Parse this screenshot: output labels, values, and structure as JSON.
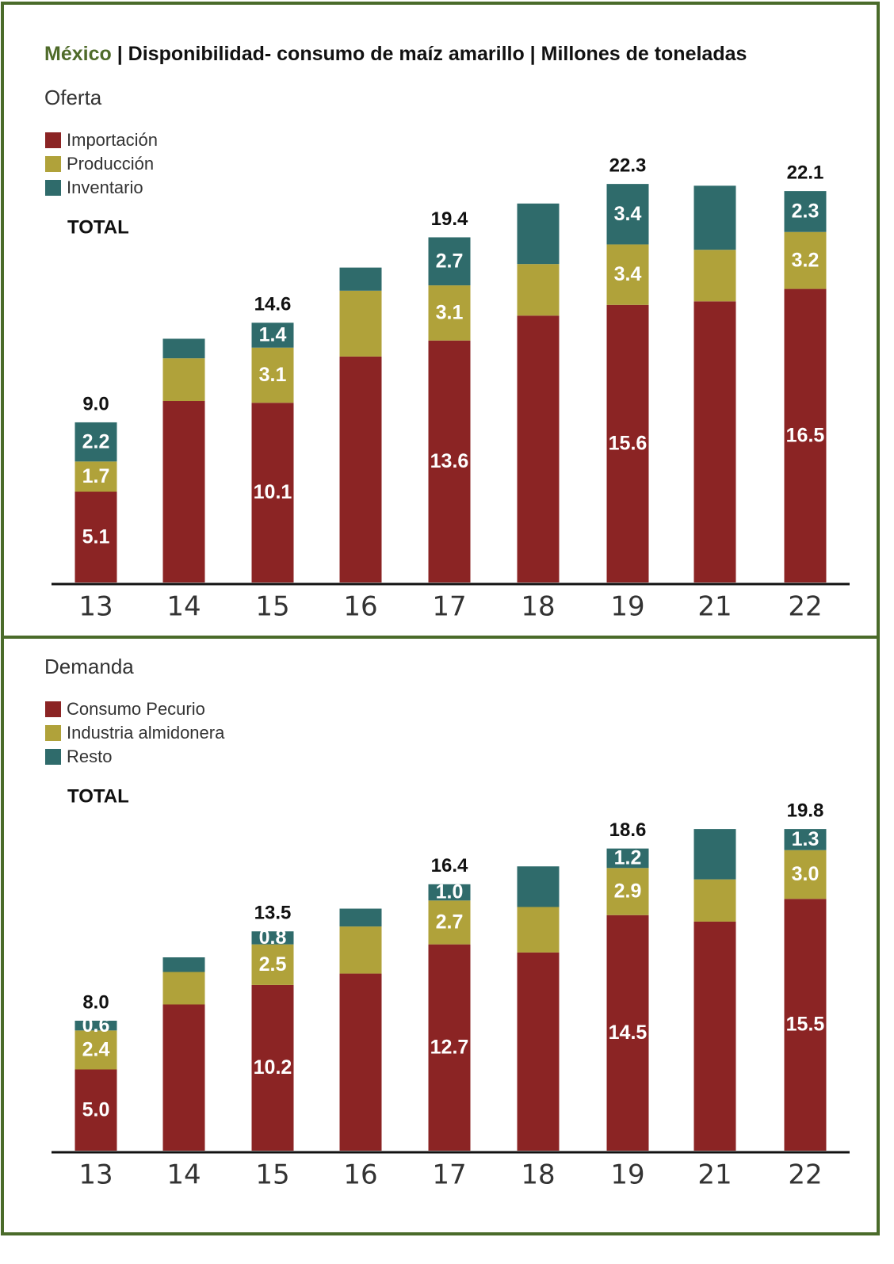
{
  "title": {
    "country": "México",
    "text": "| Disponibilidad- consumo de maíz amarillo | Millones de toneladas"
  },
  "chart_data": [
    {
      "type": "bar",
      "stacked": true,
      "subtitle": "Oferta",
      "total_title": "TOTAL",
      "categories": [
        "13",
        "14",
        "15",
        "16",
        "17",
        "18",
        "19",
        "21",
        "22"
      ],
      "series": [
        {
          "name": "Importación",
          "color": "#8b2424",
          "values": [
            5.1,
            10.2,
            10.1,
            12.7,
            13.6,
            15.0,
            15.6,
            15.8,
            16.5
          ],
          "value_labels": [
            "5.1",
            null,
            "10.1",
            null,
            "13.6",
            null,
            "15.6",
            null,
            "16.5"
          ]
        },
        {
          "name": "Producción",
          "color": "#b0a23a",
          "values": [
            1.7,
            2.4,
            3.1,
            3.7,
            3.1,
            2.9,
            3.4,
            2.9,
            3.2
          ],
          "value_labels": [
            "1.7",
            null,
            "3.1",
            null,
            "3.1",
            null,
            "3.4",
            null,
            "3.2"
          ]
        },
        {
          "name": "Inventario",
          "color": "#2f6b6b",
          "values": [
            2.2,
            1.1,
            1.4,
            1.3,
            2.7,
            3.4,
            3.4,
            3.6,
            2.3
          ],
          "value_labels": [
            "2.2",
            null,
            "1.4",
            null,
            "2.7",
            null,
            "3.4",
            null,
            "2.3"
          ]
        }
      ],
      "totals": [
        9.0,
        null,
        14.6,
        null,
        19.4,
        null,
        22.3,
        null,
        22.1
      ],
      "total_labels": [
        "9.0",
        null,
        "14.6",
        null,
        "19.4",
        null,
        "22.3",
        null,
        "22.1"
      ]
    },
    {
      "type": "bar",
      "stacked": true,
      "subtitle": "Demanda",
      "total_title": "TOTAL",
      "categories": [
        "13",
        "14",
        "15",
        "16",
        "17",
        "18",
        "19",
        "21",
        "22"
      ],
      "series": [
        {
          "name": "Consumo Pecurio",
          "color": "#8b2424",
          "values": [
            5.0,
            9.0,
            10.2,
            10.9,
            12.7,
            12.2,
            14.5,
            14.1,
            15.5
          ],
          "value_labels": [
            "5.0",
            null,
            "10.2",
            null,
            "12.7",
            null,
            "14.5",
            null,
            "15.5"
          ]
        },
        {
          "name": "Industria almidonera",
          "color": "#b0a23a",
          "values": [
            2.4,
            2.0,
            2.5,
            2.9,
            2.7,
            2.8,
            2.9,
            2.6,
            3.0
          ],
          "value_labels": [
            "2.4",
            null,
            "2.5",
            null,
            "2.7",
            null,
            "2.9",
            null,
            "3.0"
          ]
        },
        {
          "name": "Resto",
          "color": "#2f6b6b",
          "values": [
            0.6,
            0.9,
            0.8,
            1.1,
            1.0,
            2.5,
            1.2,
            3.1,
            1.3
          ],
          "value_labels": [
            "0.6",
            null,
            "0.8",
            null,
            "1.0",
            null,
            "1.2",
            null,
            "1.3"
          ]
        }
      ],
      "totals": [
        8.0,
        null,
        13.5,
        null,
        16.4,
        null,
        18.6,
        null,
        19.8
      ],
      "total_labels": [
        "8.0",
        null,
        "13.5",
        null,
        "16.4",
        null,
        "18.6",
        null,
        "19.8"
      ]
    }
  ]
}
